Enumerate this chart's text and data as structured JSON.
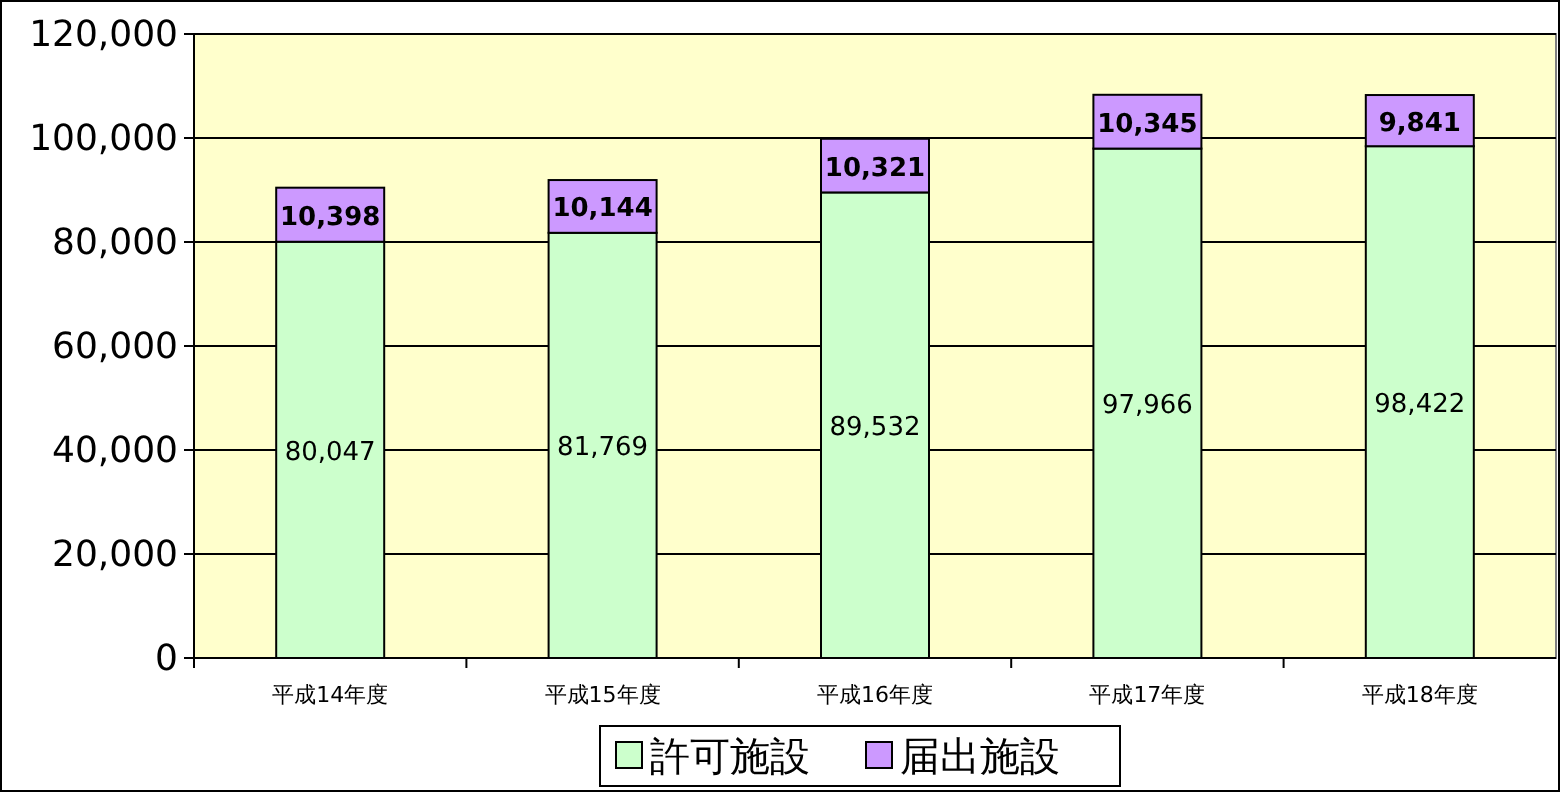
{
  "chart_data": {
    "type": "bar",
    "stacked": true,
    "categories": [
      "平成14年度",
      "平成15年度",
      "平成16年度",
      "平成17年度",
      "平成18年度"
    ],
    "series": [
      {
        "name": "許可施設",
        "color": "#ccffcc",
        "values": [
          80047,
          81769,
          89532,
          97966,
          98422
        ],
        "value_labels": [
          "80,047",
          "81,769",
          "89,532",
          "97,966",
          "98,422"
        ]
      },
      {
        "name": "届出施設",
        "color": "#cc99ff",
        "values": [
          10398,
          10144,
          10321,
          10345,
          9841
        ],
        "value_labels": [
          "10,398",
          "10,144",
          "10,321",
          "10,345",
          "9,841"
        ]
      }
    ],
    "ylim": [
      0,
      120000
    ],
    "yticks": [
      {
        "value": 0,
        "label": "0"
      },
      {
        "value": 20000,
        "label": "20,000"
      },
      {
        "value": 40000,
        "label": "40,000"
      },
      {
        "value": 60000,
        "label": "60,000"
      },
      {
        "value": 80000,
        "label": "80,000"
      },
      {
        "value": 100000,
        "label": "100,000"
      },
      {
        "value": 120000,
        "label": "120,000"
      }
    ],
    "grid": "y",
    "legend": "bottom"
  }
}
